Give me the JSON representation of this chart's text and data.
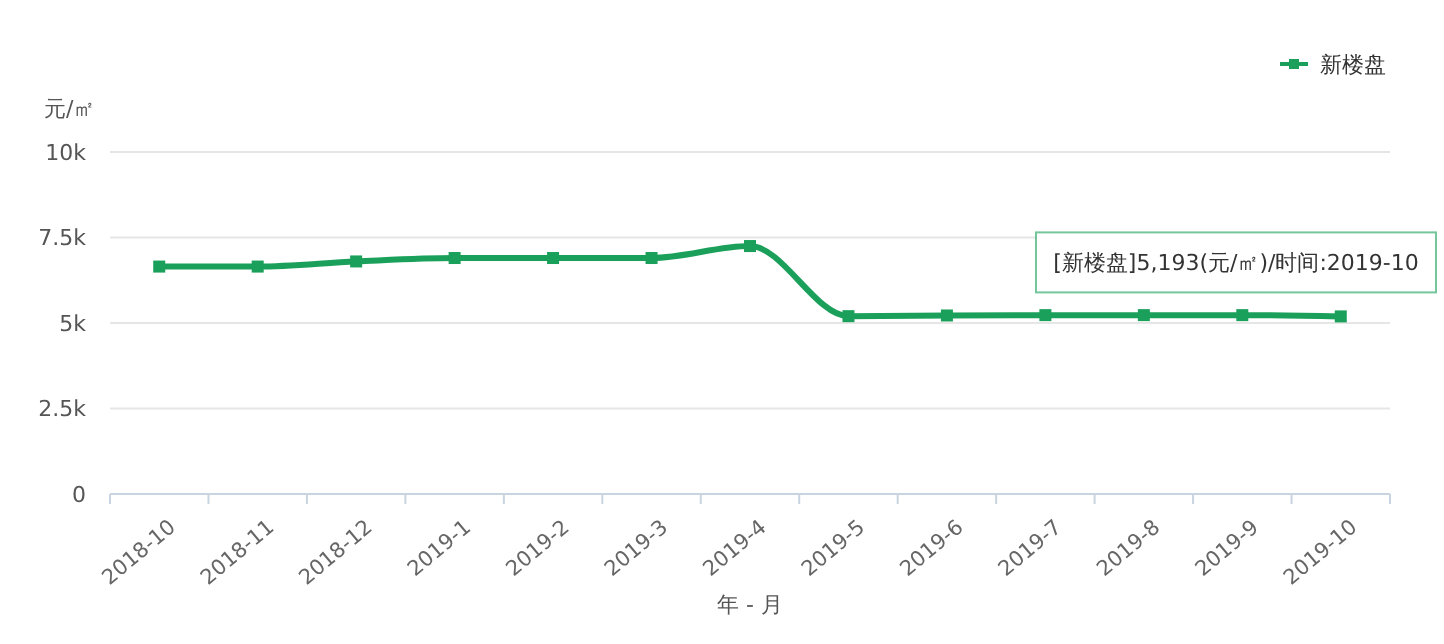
{
  "chart_data": {
    "type": "line",
    "xlabel": "年 - 月",
    "ylabel": "元/㎡",
    "categories": [
      "2018-10",
      "2018-11",
      "2018-12",
      "2019-1",
      "2019-2",
      "2019-3",
      "2019-4",
      "2019-5",
      "2019-6",
      "2019-7",
      "2019-8",
      "2019-9",
      "2019-10"
    ],
    "series": [
      {
        "name": "新楼盘",
        "color": "#1aa05a",
        "values": [
          6650,
          6650,
          6800,
          6900,
          6900,
          6900,
          7250,
          5200,
          5220,
          5230,
          5230,
          5230,
          5193
        ]
      }
    ],
    "ylim": [
      0,
      10000
    ],
    "yticks": [
      0,
      {
        "value": 2500,
        "label": "2.5k"
      },
      {
        "value": 5000,
        "label": "5k"
      },
      {
        "value": 7500,
        "label": "7.5k"
      },
      {
        "value": 10000,
        "label": "10k"
      }
    ],
    "grid": "y",
    "legend": "top right",
    "marker": "square",
    "line_style": "solid",
    "annotations": [
      {
        "text": "[新楼盘]5,193(元/㎡)/时间:2019-10",
        "x": "2019-10",
        "y": 5193
      }
    ]
  }
}
